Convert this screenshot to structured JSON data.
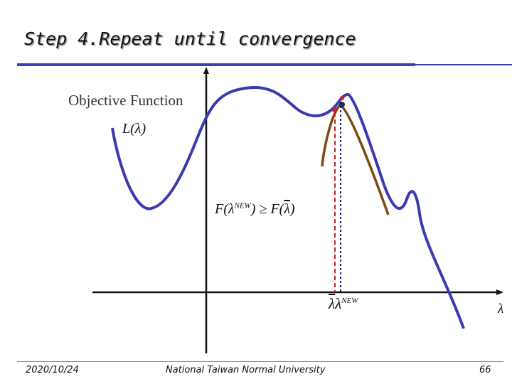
{
  "slide": {
    "title": "Step 4.Repeat until convergence",
    "objective_label": "Objective Function",
    "curve_label": {
      "symbol": "L",
      "arg": "λ"
    },
    "inequality": {
      "lhs_fn": "F",
      "lhs_arg": "λ",
      "lhs_sup": "NEW",
      "op": "≥",
      "rhs_fn": "F",
      "rhs_arg": "λ"
    },
    "lambda_marks": {
      "bar": "λ",
      "new": "λ",
      "new_sup": "NEW"
    },
    "axis_label": "λ",
    "colors": {
      "objective_curve": "#3a3ab0",
      "auxiliary_curve": "#7a4a10",
      "marker_old": "#cc2222",
      "marker_new": "#1a2a66",
      "axes": "#111111",
      "title_rule": "#3344bb"
    }
  },
  "footer": {
    "date": "2020/10/24",
    "institution": "National Taiwan Normal University",
    "page": "66"
  }
}
